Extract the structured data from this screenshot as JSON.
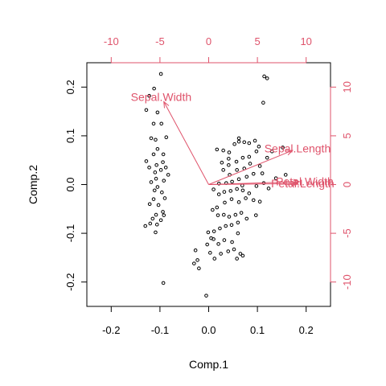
{
  "chart_data": {
    "type": "scatter",
    "subtype": "biplot",
    "xlabel": "Comp.1",
    "ylabel": "Comp.2",
    "xlim": [
      -0.25,
      0.25
    ],
    "ylim": [
      -0.25,
      0.25
    ],
    "x_ticks": [
      "-0.2",
      "-0.1",
      "0.0",
      "0.1",
      "0.2"
    ],
    "y_ticks": [
      "-0.2",
      "-0.1",
      "0.0",
      "0.1",
      "0.2"
    ],
    "secondary_xlim": [
      -12.5,
      12.5
    ],
    "secondary_ylim": [
      -12.5,
      12.5
    ],
    "secondary_x_ticks": [
      "-10",
      "-5",
      "0",
      "5",
      "10"
    ],
    "secondary_y_ticks": [
      "-10",
      "-5",
      "0",
      "5",
      "10"
    ],
    "grid": false,
    "arrow_color": "#df536b",
    "point_color": "#000000",
    "loadings": [
      {
        "label": "Sepal.Width",
        "x": -4.6,
        "y": 8.5
      },
      {
        "label": "Sepal.Length",
        "x": 8.6,
        "y": 3.5
      },
      {
        "label": "Petal.Width",
        "x": 9.3,
        "y": 0.3
      },
      {
        "label": "Petal.Length",
        "x": 9.1,
        "y": 0.1
      }
    ],
    "points": [
      [
        -0.098,
        0.227
      ],
      [
        -0.112,
        0.197
      ],
      [
        -0.122,
        0.182
      ],
      [
        -0.128,
        0.153
      ],
      [
        -0.105,
        0.148
      ],
      [
        -0.097,
        0.125
      ],
      [
        -0.113,
        0.125
      ],
      [
        -0.087,
        0.097
      ],
      [
        -0.109,
        0.092
      ],
      [
        -0.118,
        0.095
      ],
      [
        -0.105,
        0.073
      ],
      [
        -0.093,
        0.062
      ],
      [
        -0.113,
        0.062
      ],
      [
        -0.128,
        0.048
      ],
      [
        -0.094,
        0.046
      ],
      [
        -0.107,
        0.04
      ],
      [
        -0.122,
        0.035
      ],
      [
        -0.098,
        0.03
      ],
      [
        -0.088,
        0.035
      ],
      [
        -0.11,
        0.025
      ],
      [
        -0.083,
        0.02
      ],
      [
        -0.108,
        0.012
      ],
      [
        -0.118,
        0.005
      ],
      [
        -0.092,
        0.008
      ],
      [
        -0.105,
        -0.005
      ],
      [
        -0.111,
        -0.012
      ],
      [
        -0.096,
        -0.016
      ],
      [
        -0.09,
        -0.028
      ],
      [
        -0.113,
        -0.03
      ],
      [
        -0.103,
        -0.042
      ],
      [
        -0.121,
        -0.04
      ],
      [
        -0.094,
        -0.056
      ],
      [
        -0.108,
        -0.062
      ],
      [
        -0.092,
        -0.063
      ],
      [
        -0.115,
        -0.07
      ],
      [
        -0.098,
        -0.073
      ],
      [
        -0.106,
        -0.082
      ],
      [
        -0.13,
        -0.085
      ],
      [
        -0.12,
        -0.08
      ],
      [
        -0.109,
        -0.098
      ],
      [
        -0.093,
        -0.202
      ],
      [
        0.017,
        0.072
      ],
      [
        0.03,
        0.07
      ],
      [
        0.042,
        0.066
      ],
      [
        0.053,
        0.083
      ],
      [
        0.062,
        0.088
      ],
      [
        0.073,
        0.087
      ],
      [
        0.083,
        0.085
      ],
      [
        0.095,
        0.09
      ],
      [
        0.103,
        0.078
      ],
      [
        0.098,
        0.068
      ],
      [
        0.083,
        0.057
      ],
      [
        0.07,
        0.055
      ],
      [
        0.057,
        0.047
      ],
      [
        0.041,
        0.053
      ],
      [
        0.027,
        0.045
      ],
      [
        0.03,
        0.03
      ],
      [
        0.043,
        0.02
      ],
      [
        0.058,
        0.03
      ],
      [
        0.073,
        0.033
      ],
      [
        0.085,
        0.043
      ],
      [
        0.105,
        0.038
      ],
      [
        0.092,
        0.022
      ],
      [
        0.078,
        0.016
      ],
      [
        0.062,
        0.011
      ],
      [
        0.048,
        0.006
      ],
      [
        0.036,
        0.003
      ],
      [
        0.021,
        0.002
      ],
      [
        0.01,
        -0.01
      ],
      [
        0.021,
        -0.02
      ],
      [
        0.032,
        -0.015
      ],
      [
        0.045,
        -0.013
      ],
      [
        0.058,
        -0.009
      ],
      [
        0.07,
        -0.012
      ],
      [
        0.083,
        -0.018
      ],
      [
        0.098,
        -0.003
      ],
      [
        0.11,
        0.023
      ],
      [
        0.12,
        0.055
      ],
      [
        0.13,
        0.068
      ],
      [
        0.152,
        0.076
      ],
      [
        0.158,
        0.02
      ],
      [
        0.138,
        0.013
      ],
      [
        0.113,
        0.003
      ],
      [
        0.123,
        -0.008
      ],
      [
        0.105,
        -0.035
      ],
      [
        0.092,
        -0.032
      ],
      [
        0.076,
        -0.028
      ],
      [
        0.062,
        -0.036
      ],
      [
        0.047,
        -0.03
      ],
      [
        0.033,
        -0.037
      ],
      [
        0.017,
        -0.047
      ],
      [
        0.008,
        -0.052
      ],
      [
        0.019,
        -0.063
      ],
      [
        0.031,
        -0.062
      ],
      [
        0.042,
        -0.066
      ],
      [
        0.055,
        -0.062
      ],
      [
        0.067,
        -0.058
      ],
      [
        0.078,
        -0.07
      ],
      [
        0.097,
        -0.063
      ],
      [
        0.06,
        -0.078
      ],
      [
        0.047,
        -0.083
      ],
      [
        0.035,
        -0.085
      ],
      [
        0.023,
        -0.09
      ],
      [
        0.011,
        -0.096
      ],
      [
        -0.001,
        -0.098
      ],
      [
        0.01,
        -0.112
      ],
      [
        0.02,
        -0.122
      ],
      [
        0.032,
        -0.114
      ],
      [
        0.048,
        -0.118
      ],
      [
        0.06,
        -0.1
      ],
      [
        0.052,
        -0.133
      ],
      [
        0.04,
        -0.137
      ],
      [
        0.025,
        -0.142
      ],
      [
        0.012,
        -0.152
      ],
      [
        0.003,
        -0.14
      ],
      [
        0.065,
        -0.142
      ],
      [
        0.058,
        -0.152
      ],
      [
        0.07,
        -0.146
      ],
      [
        -0.027,
        -0.135
      ],
      [
        -0.023,
        -0.155
      ],
      [
        -0.03,
        -0.162
      ],
      [
        -0.02,
        -0.172
      ],
      [
        -0.003,
        -0.123
      ],
      [
        0.005,
        -0.11
      ],
      [
        -0.005,
        -0.228
      ],
      [
        0.112,
        0.168
      ],
      [
        0.114,
        0.222
      ],
      [
        0.12,
        0.218
      ],
      [
        0.062,
        0.095
      ],
      [
        0.041,
        0.04
      ],
      [
        0.069,
        -0.002
      ]
    ]
  }
}
